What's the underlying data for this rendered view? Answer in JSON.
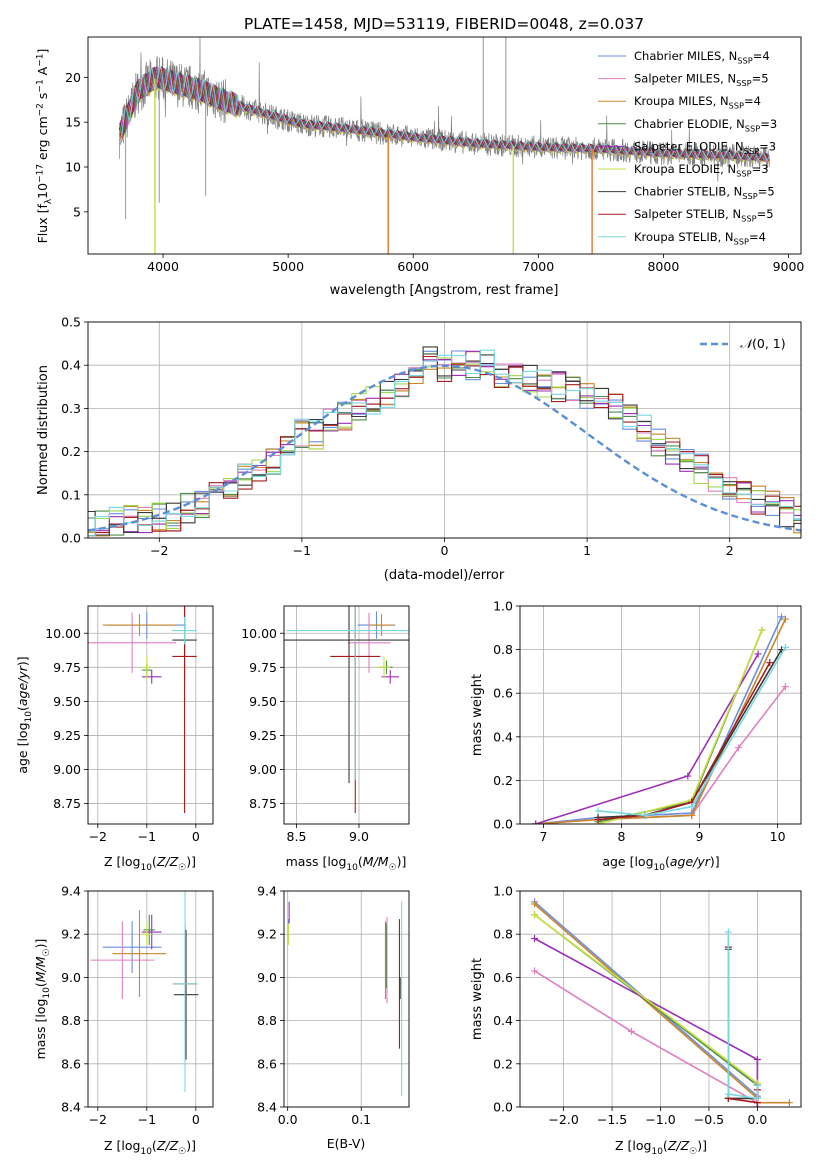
{
  "figure": {
    "title": "PLATE=1458, MJD=53119, FIBERID=0048, z=0.037"
  },
  "colors": {
    "cm": "#6a8ee0",
    "sm": "#e07fc0",
    "km": "#c9862a",
    "ce": "#4d8c4d",
    "se": "#9b2fb8",
    "ke": "#c8e040",
    "cs": "#3a3a3a",
    "ss": "#a51c1c",
    "ks": "#78d8e0",
    "data": "#808080",
    "normal": "#5b8fd6",
    "orange": "#e07a30",
    "green2": "#9fd84a"
  },
  "chart_data": [
    {
      "id": "spectrum",
      "type": "line",
      "title": "PLATE=1458, MJD=53119, FIBERID=0048, z=0.037",
      "xlabel": "wavelength [Angstrom, rest frame]",
      "ylabel": "Flux [fλ10⁻¹⁷ erg cm⁻² s⁻¹ A⁻¹]",
      "xlim": [
        3400,
        9100
      ],
      "ylim": [
        0.3,
        24.5
      ],
      "xticks": [
        4000,
        5000,
        6000,
        7000,
        8000,
        9000
      ],
      "yticks": [
        5,
        10,
        15,
        20
      ],
      "legend": "top-right",
      "series": [
        {
          "name": "Chabrier MILES, N_SSP=4",
          "key": "cm"
        },
        {
          "name": "Salpeter MILES, N_SSP=5",
          "key": "sm"
        },
        {
          "name": "Kroupa MILES, N_SSP=4",
          "key": "km"
        },
        {
          "name": "Chabrier ELODIE, N_SSP=3",
          "key": "ce"
        },
        {
          "name": "Salpeter ELODIE, N_SSP=3",
          "key": "se"
        },
        {
          "name": "Kroupa ELODIE, N_SSP=3",
          "key": "ke"
        },
        {
          "name": "Chabrier STELIB, N_SSP=5",
          "key": "cs"
        },
        {
          "name": "Salpeter STELIB, N_SSP=5",
          "key": "ss"
        },
        {
          "name": "Kroupa STELIB, N_SSP=4",
          "key": "ks"
        }
      ],
      "continuum": {
        "x": [
          3650,
          3800,
          3950,
          4100,
          4300,
          4500,
          4800,
          5100,
          5500,
          6000,
          6500,
          7000,
          7500,
          8000,
          8500,
          8850
        ],
        "y": [
          13.5,
          18.5,
          20.0,
          19.3,
          18.5,
          17.3,
          16.0,
          14.8,
          14.2,
          13.3,
          12.6,
          12.2,
          12.0,
          11.5,
          11.3,
          11.0
        ]
      },
      "dips": [
        {
          "x": 3935,
          "y": 0.3,
          "key": "ke"
        },
        {
          "x": 5800,
          "y": 0.3,
          "key": "orange"
        },
        {
          "x": 6800,
          "y": 0.3,
          "key": "ke"
        },
        {
          "x": 7430,
          "y": 0.3,
          "key": "orange"
        }
      ]
    },
    {
      "id": "residuals",
      "type": "step",
      "xlabel": "(data-model)/error",
      "ylabel": "Normed distribution",
      "xlim": [
        -2.5,
        2.5
      ],
      "ylim": [
        0,
        0.5
      ],
      "xticks": [
        -2,
        -1,
        0,
        1,
        2
      ],
      "yticks": [
        0.0,
        0.1,
        0.2,
        0.3,
        0.4,
        0.5
      ],
      "bin_width": 0.1,
      "legend": {
        "label": "N(0,1)",
        "placement": "top-right"
      },
      "histogram_envelope": [
        0.03,
        0.03,
        0.04,
        0.04,
        0.04,
        0.05,
        0.05,
        0.07,
        0.08,
        0.1,
        0.12,
        0.14,
        0.16,
        0.18,
        0.22,
        0.24,
        0.24,
        0.27,
        0.28,
        0.3,
        0.32,
        0.33,
        0.36,
        0.38,
        0.42,
        0.39,
        0.41,
        0.4,
        0.4,
        0.38,
        0.37,
        0.37,
        0.36,
        0.35,
        0.35,
        0.33,
        0.32,
        0.3,
        0.28,
        0.25,
        0.22,
        0.2,
        0.18,
        0.16,
        0.13,
        0.12,
        0.1,
        0.09,
        0.08,
        0.06,
        0.04
      ]
    },
    {
      "id": "age_vs_z",
      "type": "errorbar",
      "xlabel": "Z [log10(Z/Z☉)]",
      "ylabel": "age [log10(age/yr)]",
      "xlim": [
        -2.2,
        0.35
      ],
      "ylim": [
        8.6,
        10.2
      ],
      "xticks": [
        -2,
        -1,
        0
      ],
      "yticks": [
        8.75,
        9.0,
        9.25,
        9.5,
        9.75,
        10.0
      ],
      "points": [
        {
          "key": "cm",
          "x": -1.0,
          "y": 10.06,
          "xerr": 0.8,
          "yerr": 0.1
        },
        {
          "key": "sm",
          "x": -1.3,
          "y": 9.93,
          "xerr": 0.9,
          "yerr": 0.22
        },
        {
          "key": "km",
          "x": -1.15,
          "y": 10.06,
          "xerr": 0.75,
          "yerr": 0.08
        },
        {
          "key": "ce",
          "x": -1.0,
          "y": 9.73,
          "xerr": 0.1,
          "yerr": 0.05
        },
        {
          "key": "se",
          "x": -0.9,
          "y": 9.68,
          "xerr": 0.2,
          "yerr": 0.05
        },
        {
          "key": "ke",
          "x": -1.0,
          "y": 9.75,
          "xerr": 0.1,
          "yerr": 0.08
        },
        {
          "key": "cs",
          "x": -0.23,
          "y": 9.95,
          "xerr": 0.25,
          "yerr": 0.3
        },
        {
          "key": "ss",
          "x": -0.23,
          "y": 9.83,
          "xerr": 0.25,
          "yerr": 1.15
        },
        {
          "key": "ks",
          "x": -0.23,
          "y": 10.02,
          "xerr": 0.25,
          "yerr": 0.1
        }
      ]
    },
    {
      "id": "age_vs_mass",
      "type": "errorbar",
      "xlabel": "mass [log10(M/M☉)]",
      "xlim": [
        8.4,
        9.4
      ],
      "ylim": [
        8.6,
        10.2
      ],
      "xticks": [
        8.5,
        9.0
      ],
      "yticks": [
        8.75,
        9.0,
        9.25,
        9.5,
        9.75,
        10.0
      ],
      "points": [
        {
          "key": "cm",
          "x": 9.14,
          "y": 10.06,
          "xerr": 0.15,
          "yerr": 0.1
        },
        {
          "key": "sm",
          "x": 9.08,
          "y": 9.93,
          "xerr": 0.17,
          "yerr": 0.22
        },
        {
          "key": "km",
          "x": 9.18,
          "y": 10.06,
          "xerr": 0.1,
          "yerr": 0.08
        },
        {
          "key": "ce",
          "x": 9.22,
          "y": 9.75,
          "xerr": 0.05,
          "yerr": 0.05
        },
        {
          "key": "se",
          "x": 9.25,
          "y": 9.68,
          "xerr": 0.07,
          "yerr": 0.05
        },
        {
          "key": "ke",
          "x": 9.2,
          "y": 9.75,
          "xerr": 0.05,
          "yerr": 0.08
        },
        {
          "key": "cs",
          "x": 8.92,
          "y": 9.95,
          "xerr": 0.55,
          "yerr": 1.05
        },
        {
          "key": "ss",
          "x": 8.97,
          "y": 9.83,
          "xerr": 0.2,
          "yerr": 1.15
        },
        {
          "key": "ks",
          "x": 8.97,
          "y": 10.02,
          "xerr": 0.55,
          "yerr": 1.1
        }
      ]
    },
    {
      "id": "massweight_vs_age",
      "type": "line",
      "xlabel": "age [log10(age/yr)]",
      "ylabel": "mass weight",
      "xlim": [
        6.7,
        10.3
      ],
      "ylim": [
        0.0,
        1.0
      ],
      "xticks": [
        7,
        8,
        9,
        10
      ],
      "yticks": [
        0.0,
        0.2,
        0.4,
        0.6,
        0.8,
        1.0
      ],
      "series": [
        {
          "key": "cm",
          "x": [
            6.9,
            7.7,
            8.9,
            10.05
          ],
          "y": [
            0.0,
            0.03,
            0.05,
            0.95
          ]
        },
        {
          "key": "sm",
          "x": [
            6.9,
            7.7,
            8.9,
            9.5,
            10.1
          ],
          "y": [
            0.0,
            0.02,
            0.04,
            0.35,
            0.63
          ]
        },
        {
          "key": "km",
          "x": [
            6.9,
            7.7,
            8.9,
            10.1
          ],
          "y": [
            0.0,
            0.02,
            0.04,
            0.94
          ]
        },
        {
          "key": "ce",
          "x": [
            7.7,
            8.9,
            9.8
          ],
          "y": [
            0.01,
            0.1,
            0.89
          ]
        },
        {
          "key": "se",
          "x": [
            6.9,
            8.85,
            9.75
          ],
          "y": [
            0.0,
            0.22,
            0.78
          ]
        },
        {
          "key": "ke",
          "x": [
            7.7,
            8.9,
            9.8
          ],
          "y": [
            0.0,
            0.11,
            0.89
          ]
        },
        {
          "key": "cs",
          "x": [
            7.7,
            8.3,
            8.9,
            10.05
          ],
          "y": [
            0.03,
            0.04,
            0.1,
            0.8
          ]
        },
        {
          "key": "ss",
          "x": [
            7.7,
            8.3,
            8.9,
            9.9
          ],
          "y": [
            0.02,
            0.04,
            0.1,
            0.74
          ]
        },
        {
          "key": "ks",
          "x": [
            7.7,
            8.3,
            8.9,
            10.1
          ],
          "y": [
            0.06,
            0.04,
            0.08,
            0.81
          ]
        }
      ]
    },
    {
      "id": "mass_vs_z",
      "type": "errorbar",
      "xlabel": "Z [log10(Z/Z☉)]",
      "ylabel": "mass [log10(M/M☉)]",
      "xlim": [
        -2.2,
        0.35
      ],
      "ylim": [
        8.4,
        9.4
      ],
      "xticks": [
        -2,
        -1,
        0
      ],
      "yticks": [
        8.4,
        8.6,
        8.8,
        9.0,
        9.2,
        9.4
      ],
      "points": [
        {
          "key": "cm",
          "x": -1.3,
          "y": 9.14,
          "xerr": 0.6,
          "yerr": 0.12
        },
        {
          "key": "sm",
          "x": -1.5,
          "y": 9.08,
          "xerr": 0.65,
          "yerr": 0.18
        },
        {
          "key": "km",
          "x": -1.15,
          "y": 9.11,
          "xerr": 0.55,
          "yerr": 0.2
        },
        {
          "key": "ce",
          "x": -0.95,
          "y": 9.22,
          "xerr": 0.12,
          "yerr": 0.07
        },
        {
          "key": "se",
          "x": -0.9,
          "y": 9.21,
          "xerr": 0.2,
          "yerr": 0.08
        },
        {
          "key": "ke",
          "x": -1.0,
          "y": 9.2,
          "xerr": 0.1,
          "yerr": 0.05
        },
        {
          "key": "cs",
          "x": -0.2,
          "y": 8.92,
          "xerr": 0.25,
          "yerr": 0.3
        },
        {
          "key": "ss",
          "x": -0.22,
          "y": 8.97,
          "xerr": 0.25,
          "yerr": 0.27
        },
        {
          "key": "ks",
          "x": -0.22,
          "y": 8.97,
          "xerr": 0.25,
          "yerr": 0.5
        }
      ]
    },
    {
      "id": "mass_vs_ebv",
      "type": "errorbar",
      "xlabel": "E(B-V)",
      "xlim": [
        -0.005,
        0.165
      ],
      "ylim": [
        8.4,
        9.4
      ],
      "xticks": [
        0.0,
        0.1
      ],
      "yticks": [
        8.4,
        8.6,
        8.8,
        9.0,
        9.2,
        9.4
      ],
      "points": [
        {
          "key": "cm",
          "x": 0.001,
          "y": 9.22,
          "yerr": 0.05
        },
        {
          "key": "se",
          "x": 0.002,
          "y": 9.3,
          "yerr": 0.05
        },
        {
          "key": "ke",
          "x": 0.001,
          "y": 9.2,
          "yerr": 0.05
        },
        {
          "key": "sm",
          "x": 0.135,
          "y": 9.08,
          "yerr": 0.2
        },
        {
          "key": "km",
          "x": 0.133,
          "y": 9.08,
          "yerr": 0.18
        },
        {
          "key": "ce",
          "x": 0.134,
          "y": 9.1,
          "yerr": 0.15
        },
        {
          "key": "ss",
          "x": 0.152,
          "y": 8.97,
          "yerr": 0.3
        },
        {
          "key": "ks",
          "x": 0.155,
          "y": 8.9,
          "yerr": 0.45
        },
        {
          "key": "cs",
          "x": 0.153,
          "y": 8.95,
          "yerr": 0.05
        }
      ]
    },
    {
      "id": "massweight_vs_z",
      "type": "line",
      "xlabel": "Z [log10(Z/Z☉)]",
      "ylabel": "mass weight",
      "xlim": [
        -2.45,
        0.45
      ],
      "ylim": [
        0.0,
        1.0
      ],
      "xticks": [
        -2.0,
        -1.5,
        -1.0,
        -0.5,
        0.0
      ],
      "yticks": [
        0.0,
        0.2,
        0.4,
        0.6,
        0.8,
        1.0
      ],
      "series": [
        {
          "key": "cm",
          "x": [
            -2.3,
            0.0
          ],
          "y": [
            0.95,
            0.05
          ]
        },
        {
          "key": "sm",
          "x": [
            -2.3,
            -1.3,
            0.0
          ],
          "y": [
            0.63,
            0.35,
            0.02
          ]
        },
        {
          "key": "km",
          "x": [
            -2.3,
            0.0,
            0.0,
            0.33
          ],
          "y": [
            0.94,
            0.04,
            0.02,
            0.02
          ]
        },
        {
          "key": "ce",
          "x": [
            -2.3,
            0.0
          ],
          "y": [
            0.89,
            0.1
          ]
        },
        {
          "key": "se",
          "x": [
            -2.3,
            0.0,
            0.0
          ],
          "y": [
            0.78,
            0.22,
            0.0
          ]
        },
        {
          "key": "ke",
          "x": [
            -2.3,
            0.0
          ],
          "y": [
            0.89,
            0.11
          ]
        },
        {
          "key": "cs",
          "x": [
            -0.3,
            -0.3,
            0.0,
            0.0
          ],
          "y": [
            0.73,
            0.04,
            0.04,
            0.1
          ]
        },
        {
          "key": "ss",
          "x": [
            -0.3,
            -0.3,
            0.0,
            0.0
          ],
          "y": [
            0.74,
            0.04,
            0.02,
            0.08
          ]
        },
        {
          "key": "ks",
          "x": [
            -0.3,
            -0.3,
            0.0,
            0.0
          ],
          "y": [
            0.81,
            0.06,
            0.04,
            0.1
          ]
        }
      ]
    }
  ]
}
